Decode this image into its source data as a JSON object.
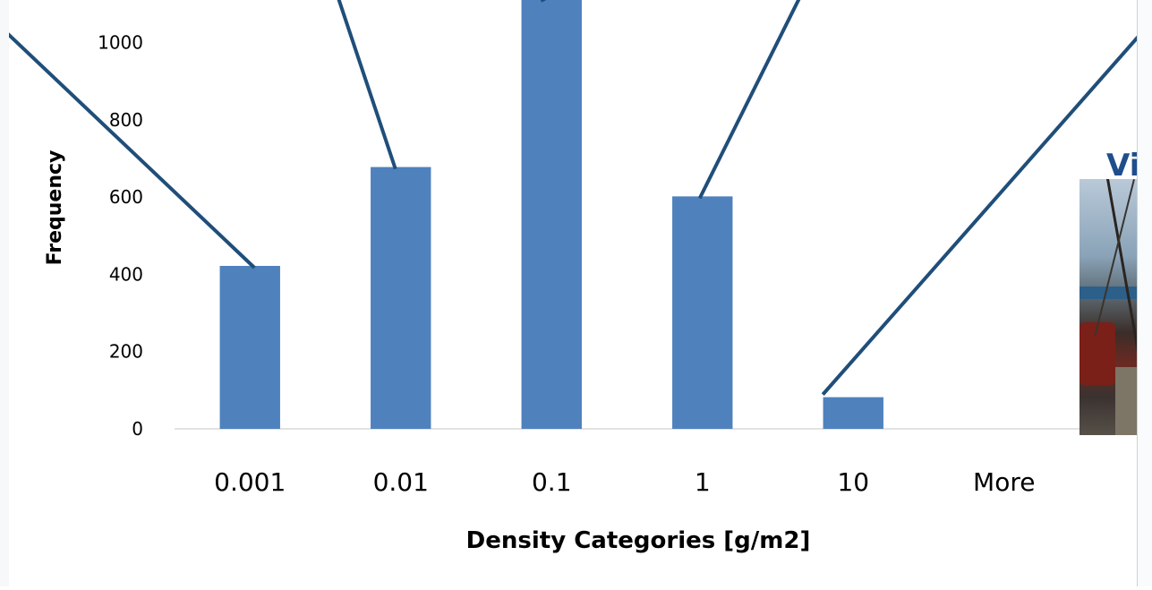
{
  "chart_data": {
    "type": "bar",
    "categories": [
      "0.001",
      "0.01",
      "0.1",
      "1",
      "10",
      "More"
    ],
    "values": [
      422,
      678,
      1113,
      602,
      82,
      0
    ],
    "xlabel": "Density Categories [g/m2]",
    "ylabel": "Frequency",
    "yticks": [
      0,
      200,
      400,
      600,
      800,
      1000
    ],
    "ylim": [
      0,
      1150
    ],
    "bar_color": "#4f81bd",
    "grid": false,
    "legend": "none"
  },
  "annotations": {
    "callout_line_color": "#1f4e79"
  },
  "side_panel": {
    "title_fragment": "Vi",
    "title_color": "#1f4e8c"
  }
}
